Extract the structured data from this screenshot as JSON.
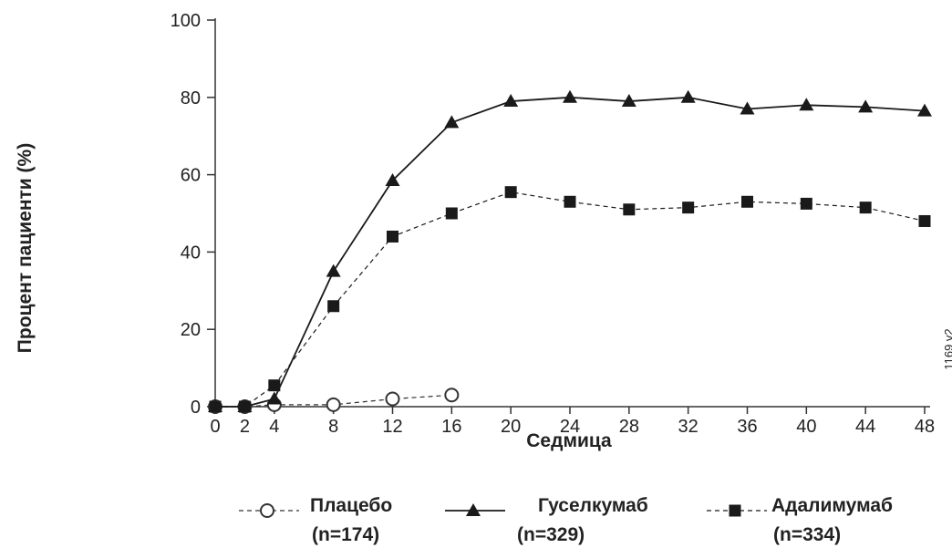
{
  "chart_data": {
    "type": "line",
    "xlabel": "Седмица",
    "ylabel": "Процент пациенти (%)",
    "x_ticks": [
      0,
      2,
      4,
      8,
      12,
      16,
      20,
      24,
      28,
      32,
      36,
      40,
      44,
      48
    ],
    "y_ticks": [
      0,
      20,
      40,
      60,
      80,
      100
    ],
    "xlim": [
      0,
      48
    ],
    "ylim": [
      0,
      100
    ],
    "grid": false,
    "legend_position": "bottom",
    "annotation": "1169 v2",
    "series": [
      {
        "name": "Плацебо",
        "n_label": "(n=174)",
        "marker": "open-circle",
        "line_style": "dashed",
        "color": "#333333",
        "x": [
          0,
          2,
          4,
          8,
          12,
          16
        ],
        "y": [
          0,
          0,
          0.5,
          0.5,
          2,
          3
        ]
      },
      {
        "name": "Гуселкумаб",
        "n_label": "(n=329)",
        "marker": "filled-triangle",
        "line_style": "solid",
        "color": "#1a1a1a",
        "x": [
          0,
          2,
          4,
          8,
          12,
          16,
          20,
          24,
          28,
          32,
          36,
          40,
          44,
          48
        ],
        "y": [
          0,
          0,
          2,
          35,
          58.5,
          73.5,
          79,
          80,
          79,
          80,
          77,
          78,
          77.5,
          76.5
        ]
      },
      {
        "name": "Адалимумаб",
        "n_label": "(n=334)",
        "marker": "filled-square",
        "line_style": "dashed",
        "color": "#1a1a1a",
        "x": [
          0,
          2,
          4,
          8,
          12,
          16,
          20,
          24,
          28,
          32,
          36,
          40,
          44,
          48
        ],
        "y": [
          0,
          0,
          5.5,
          26,
          44,
          50,
          55.5,
          53,
          51,
          51.5,
          53,
          52.5,
          51.5,
          48
        ]
      }
    ]
  }
}
